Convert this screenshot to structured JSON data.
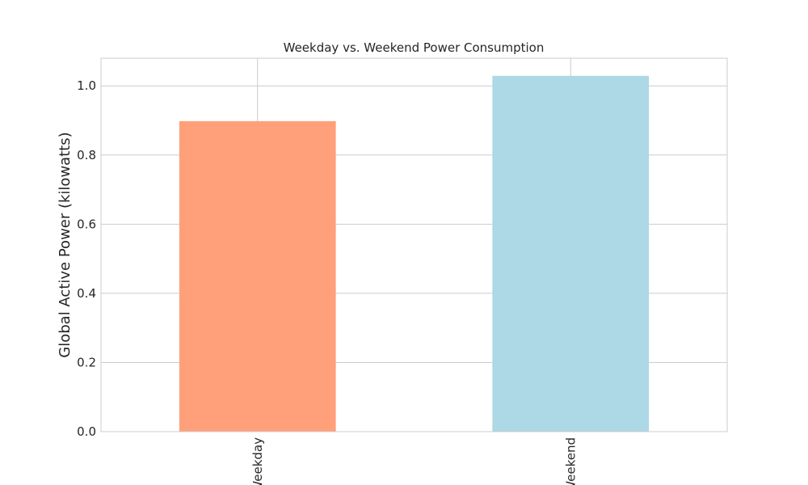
{
  "chart_data": {
    "type": "bar",
    "title": "Weekday vs. Weekend Power Consumption",
    "xlabel": "",
    "ylabel": "Global Active Power (kilowatts)",
    "categories": [
      "Weekday",
      "Weekend"
    ],
    "values": [
      0.898,
      1.029
    ],
    "colors": [
      "#ffa07a",
      "#add8e6"
    ],
    "ylim": [
      0,
      1.08
    ],
    "yticks": [
      0.0,
      0.2,
      0.4,
      0.6,
      0.8,
      1.0
    ],
    "ytick_labels": [
      "0.0",
      "0.2",
      "0.4",
      "0.6",
      "0.8",
      "1.0"
    ],
    "grid": true,
    "legend": "none",
    "style": "seaborn-whitegrid"
  }
}
